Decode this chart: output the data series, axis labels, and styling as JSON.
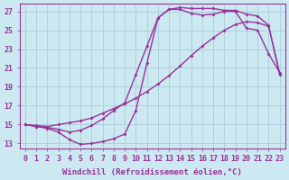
{
  "xlabel": "Windchill (Refroidissement éolien,°C)",
  "bg_color": "#cce8f0",
  "grid_color": "#aaccdd",
  "line_color": "#993399",
  "markersize": 2.0,
  "linewidth": 1.0,
  "xlim": [
    -0.5,
    23.5
  ],
  "ylim": [
    12.5,
    27.8
  ],
  "xticks": [
    0,
    1,
    2,
    3,
    4,
    5,
    6,
    7,
    8,
    9,
    10,
    11,
    12,
    13,
    14,
    15,
    16,
    17,
    18,
    19,
    20,
    21,
    22,
    23
  ],
  "yticks": [
    13,
    15,
    17,
    19,
    21,
    23,
    25,
    27
  ],
  "font_family": "monospace",
  "tick_fontsize": 6.0,
  "label_fontsize": 6.5,
  "curve1_x": [
    0,
    1,
    2,
    3,
    4,
    5,
    6,
    7,
    8,
    9,
    10,
    11,
    12,
    13,
    14,
    15,
    16,
    17,
    18,
    19,
    20,
    21,
    22,
    23
  ],
  "curve1_y": [
    15.0,
    14.9,
    14.8,
    15.0,
    15.2,
    15.4,
    15.7,
    16.2,
    16.7,
    17.2,
    17.8,
    18.5,
    19.3,
    20.2,
    21.2,
    22.3,
    23.3,
    24.2,
    25.0,
    25.6,
    25.9,
    25.8,
    25.4,
    20.4
  ],
  "curve2_x": [
    0,
    1,
    2,
    3,
    4,
    5,
    6,
    7,
    8,
    9,
    10,
    11,
    12,
    13,
    14,
    15,
    16,
    17,
    18,
    19,
    20,
    21,
    22,
    23
  ],
  "curve2_y": [
    15.0,
    14.8,
    14.7,
    14.5,
    14.2,
    14.4,
    14.9,
    15.6,
    16.5,
    17.3,
    20.3,
    23.3,
    26.3,
    27.2,
    27.4,
    27.3,
    27.3,
    27.3,
    27.1,
    27.1,
    26.7,
    26.5,
    25.5,
    20.3
  ],
  "curve3_x": [
    0,
    1,
    2,
    3,
    4,
    5,
    6,
    7,
    8,
    9,
    10,
    11,
    12,
    13,
    14,
    15,
    16,
    17,
    18,
    19,
    20,
    21,
    22,
    23
  ],
  "curve3_y": [
    15.0,
    14.8,
    14.6,
    14.2,
    13.4,
    12.9,
    13.0,
    13.2,
    13.5,
    14.0,
    16.5,
    21.5,
    26.3,
    27.2,
    27.2,
    26.8,
    26.6,
    26.7,
    27.0,
    27.0,
    25.2,
    25.0,
    22.5,
    20.5
  ]
}
